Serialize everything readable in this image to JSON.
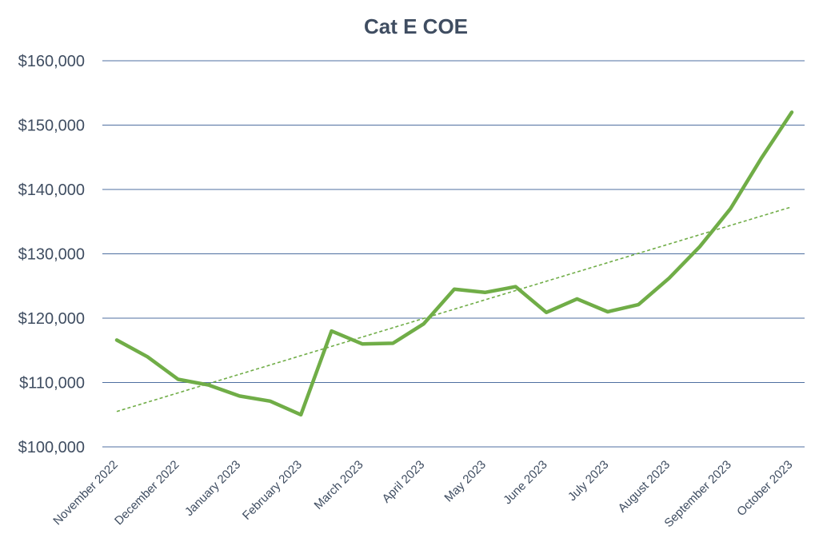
{
  "chart_data": {
    "type": "line",
    "title": "Cat E COE",
    "xlabel": "",
    "ylabel": "",
    "ylim": [
      100000,
      160000
    ],
    "ytick_values": [
      100000,
      110000,
      120000,
      130000,
      140000,
      150000,
      160000
    ],
    "ytick_labels": [
      "$100,000",
      "$110,000",
      "$120,000",
      "$130,000",
      "$140,000",
      "$150,000",
      "$160,000"
    ],
    "xtick_labels": [
      "November 2022",
      "December 2022",
      "January 2023",
      "February 2023",
      "March 2023",
      "April 2023",
      "May 2023",
      "June 2023",
      "July 2023",
      "August 2023",
      "September 2023",
      "October 2023"
    ],
    "grid": true,
    "legend": "none",
    "series": [
      {
        "values": [
          116600,
          114000,
          110500,
          109600,
          107900,
          107100,
          105000,
          118000,
          116000,
          116100,
          119100,
          124500,
          124000,
          124900,
          120900,
          123000,
          121000,
          122100,
          126200,
          131100,
          137000,
          144800,
          152000
        ],
        "color": "#70ad47",
        "style": "solid"
      }
    ],
    "trendline": {
      "type": "linear",
      "start": 105500,
      "end": 137300,
      "color": "#70ad47",
      "style": "dashed"
    },
    "colors": {
      "gridline": "#4f6fa0",
      "text": "#3f4d61"
    }
  }
}
